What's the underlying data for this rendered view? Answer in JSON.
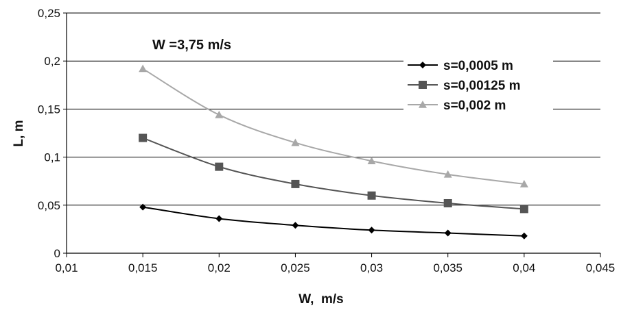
{
  "chart_data": {
    "type": "line",
    "annotation": "W =3,75 m/s",
    "xlabel": "W,  m/s",
    "ylabel": "L, m",
    "xlim": [
      0.01,
      0.045
    ],
    "ylim": [
      0,
      0.25
    ],
    "x_ticks": [
      "0,01",
      "0,015",
      "0,02",
      "0,025",
      "0,03",
      "0,035",
      "0,04",
      "0,045"
    ],
    "y_ticks": [
      "0",
      "0,05",
      "0,1",
      "0,15",
      "0,2",
      "0,25"
    ],
    "grid": "horizontal",
    "legend_position": "top-right",
    "x": [
      0.015,
      0.02,
      0.025,
      0.03,
      0.035,
      0.04
    ],
    "series": [
      {
        "name": "s=0,0005 m",
        "marker": "diamond",
        "color": "#000000",
        "values": [
          0.048,
          0.036,
          0.029,
          0.024,
          0.021,
          0.018
        ]
      },
      {
        "name": "s=0,00125 m",
        "marker": "square",
        "color": "#555555",
        "values": [
          0.12,
          0.09,
          0.072,
          0.06,
          0.052,
          0.046
        ]
      },
      {
        "name": "s=0,002 m",
        "marker": "triangle",
        "color": "#a8a8a8",
        "values": [
          0.192,
          0.144,
          0.115,
          0.096,
          0.082,
          0.072
        ]
      }
    ]
  }
}
